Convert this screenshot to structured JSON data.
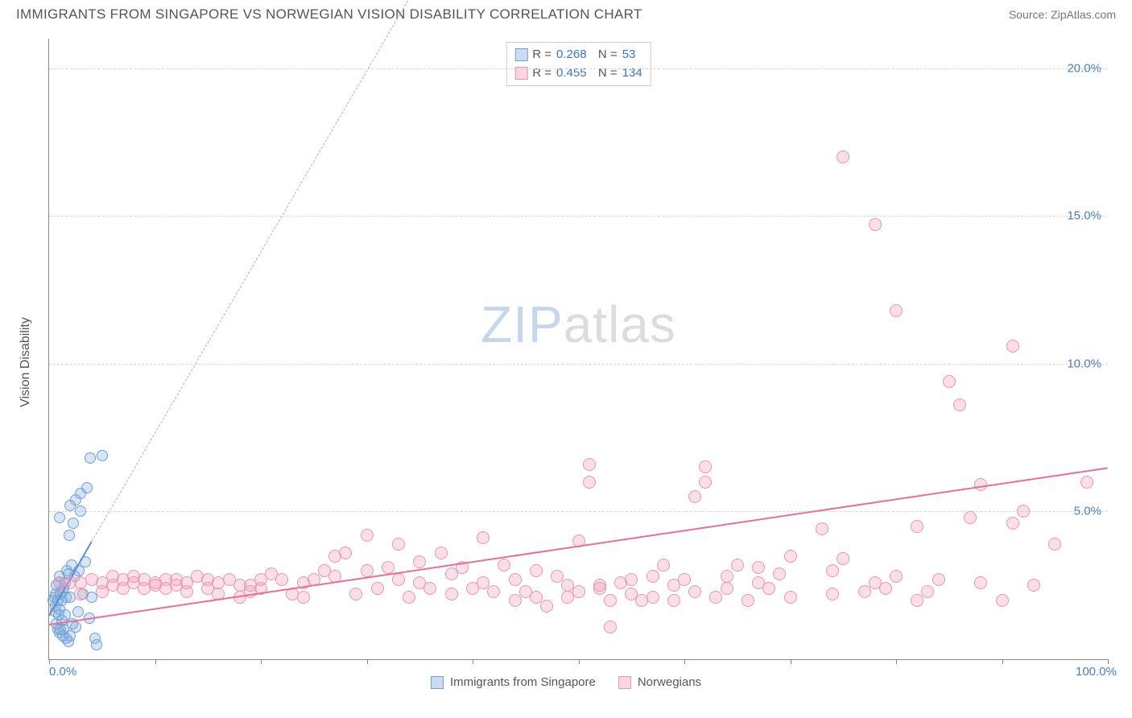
{
  "title": "IMMIGRANTS FROM SINGAPORE VS NORWEGIAN VISION DISABILITY CORRELATION CHART",
  "source": "Source: ZipAtlas.com",
  "y_axis_title": "Vision Disability",
  "watermark": {
    "part1": "ZIP",
    "part2": "atlas"
  },
  "chart": {
    "type": "scatter",
    "background_color": "#ffffff",
    "grid_color": "#d8d8d8",
    "axis_color": "#888888",
    "xlim": [
      0,
      100
    ],
    "ylim": [
      0,
      21
    ],
    "x_ticks": [
      0,
      10,
      20,
      30,
      40,
      50,
      60,
      70,
      80,
      90,
      100
    ],
    "x_tick_labels": {
      "0": "0.0%",
      "100": "100.0%"
    },
    "y_ticks": [
      5,
      10,
      15,
      20
    ],
    "y_tick_labels": [
      "5.0%",
      "10.0%",
      "15.0%",
      "20.0%"
    ],
    "label_fontsize": 15,
    "label_color": "#4a7ebb",
    "marker_radius_blue": 7,
    "marker_radius_pink": 8,
    "series": [
      {
        "name": "Immigrants from Singapore",
        "color_fill": "rgba(137,178,224,0.35)",
        "color_stroke": "#6fa0d8",
        "trend_solid_color": "#5b8fd0",
        "trend_dash_color": "#9ab8dd",
        "R": "0.268",
        "N": "53",
        "trend": {
          "x1": 0,
          "y1": 1.5,
          "x2": 4,
          "y2": 4.0,
          "extend_to_x": 35,
          "extend_to_y": 23
        },
        "points": [
          [
            0.4,
            2.0
          ],
          [
            0.5,
            2.1
          ],
          [
            0.6,
            1.6
          ],
          [
            0.6,
            2.2
          ],
          [
            0.7,
            2.5
          ],
          [
            0.8,
            1.0
          ],
          [
            0.9,
            2.6
          ],
          [
            1.0,
            0.9
          ],
          [
            1.0,
            2.8
          ],
          [
            1.1,
            2.2
          ],
          [
            1.2,
            1.3
          ],
          [
            1.2,
            2.0
          ],
          [
            1.3,
            2.3
          ],
          [
            1.4,
            1.0
          ],
          [
            1.5,
            2.6
          ],
          [
            1.6,
            0.7
          ],
          [
            1.7,
            3.0
          ],
          [
            1.8,
            0.6
          ],
          [
            1.9,
            4.2
          ],
          [
            2.0,
            0.8
          ],
          [
            2.1,
            3.2
          ],
          [
            2.3,
            4.6
          ],
          [
            2.5,
            1.1
          ],
          [
            2.5,
            5.4
          ],
          [
            2.8,
            3.0
          ],
          [
            3.0,
            5.0
          ],
          [
            3.0,
            5.6
          ],
          [
            3.6,
            5.8
          ],
          [
            3.9,
            6.8
          ],
          [
            4.0,
            2.1
          ],
          [
            4.3,
            0.7
          ],
          [
            4.5,
            0.5
          ],
          [
            5.0,
            6.9
          ],
          [
            0.6,
            1.8
          ],
          [
            0.7,
            1.2
          ],
          [
            0.8,
            2.0
          ],
          [
            0.9,
            1.5
          ],
          [
            1.0,
            1.7
          ],
          [
            1.1,
            1.0
          ],
          [
            1.3,
            0.8
          ],
          [
            1.4,
            2.4
          ],
          [
            1.5,
            1.5
          ],
          [
            1.6,
            2.1
          ],
          [
            1.8,
            2.9
          ],
          [
            2.0,
            2.1
          ],
          [
            2.2,
            1.2
          ],
          [
            2.4,
            2.8
          ],
          [
            2.7,
            1.6
          ],
          [
            3.2,
            2.2
          ],
          [
            3.4,
            3.3
          ],
          [
            3.8,
            1.4
          ],
          [
            1.0,
            4.8
          ],
          [
            2.0,
            5.2
          ]
        ]
      },
      {
        "name": "Norwegians",
        "color_fill": "rgba(244,164,186,0.35)",
        "color_stroke": "#ec93ae",
        "trend_solid_color": "#e86f95",
        "trend_dash_color": "#f3aec2",
        "R": "0.455",
        "N": "134",
        "trend": {
          "x1": 0,
          "y1": 1.2,
          "x2": 100,
          "y2": 6.5
        },
        "points": [
          [
            1,
            2.6
          ],
          [
            2,
            2.6
          ],
          [
            3,
            2.6
          ],
          [
            4,
            2.7
          ],
          [
            5,
            2.6
          ],
          [
            6,
            2.5
          ],
          [
            6,
            2.8
          ],
          [
            7,
            2.7
          ],
          [
            8,
            2.6
          ],
          [
            8,
            2.8
          ],
          [
            9,
            2.7
          ],
          [
            10,
            2.6
          ],
          [
            10,
            2.5
          ],
          [
            11,
            2.7
          ],
          [
            12,
            2.7
          ],
          [
            12,
            2.5
          ],
          [
            13,
            2.6
          ],
          [
            14,
            2.8
          ],
          [
            15,
            2.4
          ],
          [
            15,
            2.7
          ],
          [
            16,
            2.6
          ],
          [
            17,
            2.7
          ],
          [
            18,
            2.1
          ],
          [
            18,
            2.5
          ],
          [
            19,
            2.3
          ],
          [
            20,
            2.4
          ],
          [
            20,
            2.7
          ],
          [
            21,
            2.9
          ],
          [
            22,
            2.7
          ],
          [
            23,
            2.2
          ],
          [
            24,
            2.1
          ],
          [
            24,
            2.6
          ],
          [
            25,
            2.7
          ],
          [
            26,
            3.0
          ],
          [
            27,
            2.8
          ],
          [
            27,
            3.5
          ],
          [
            28,
            3.6
          ],
          [
            29,
            2.2
          ],
          [
            30,
            3.0
          ],
          [
            30,
            4.2
          ],
          [
            31,
            2.4
          ],
          [
            32,
            3.1
          ],
          [
            33,
            2.7
          ],
          [
            33,
            3.9
          ],
          [
            34,
            2.1
          ],
          [
            35,
            2.6
          ],
          [
            35,
            3.3
          ],
          [
            36,
            2.4
          ],
          [
            37,
            3.6
          ],
          [
            38,
            2.2
          ],
          [
            38,
            2.9
          ],
          [
            39,
            3.1
          ],
          [
            40,
            2.4
          ],
          [
            41,
            2.6
          ],
          [
            41,
            4.1
          ],
          [
            42,
            2.3
          ],
          [
            43,
            3.2
          ],
          [
            44,
            2.0
          ],
          [
            44,
            2.7
          ],
          [
            45,
            2.3
          ],
          [
            46,
            2.1
          ],
          [
            46,
            3.0
          ],
          [
            47,
            1.8
          ],
          [
            48,
            2.8
          ],
          [
            49,
            2.1
          ],
          [
            49,
            2.5
          ],
          [
            50,
            2.3
          ],
          [
            50,
            4.0
          ],
          [
            51,
            6.6
          ],
          [
            51,
            6.0
          ],
          [
            52,
            2.4
          ],
          [
            52,
            2.5
          ],
          [
            53,
            2.0
          ],
          [
            53,
            1.1
          ],
          [
            54,
            2.6
          ],
          [
            55,
            2.2
          ],
          [
            55,
            2.7
          ],
          [
            56,
            2.0
          ],
          [
            57,
            2.1
          ],
          [
            57,
            2.8
          ],
          [
            58,
            3.2
          ],
          [
            59,
            2.0
          ],
          [
            59,
            2.5
          ],
          [
            60,
            2.7
          ],
          [
            61,
            5.5
          ],
          [
            61,
            2.3
          ],
          [
            62,
            6.0
          ],
          [
            62,
            6.5
          ],
          [
            63,
            2.1
          ],
          [
            64,
            2.8
          ],
          [
            64,
            2.4
          ],
          [
            65,
            3.2
          ],
          [
            66,
            2.0
          ],
          [
            67,
            2.6
          ],
          [
            67,
            3.1
          ],
          [
            68,
            2.4
          ],
          [
            69,
            2.9
          ],
          [
            70,
            2.1
          ],
          [
            70,
            3.5
          ],
          [
            73,
            4.4
          ],
          [
            74,
            2.2
          ],
          [
            74,
            3.0
          ],
          [
            75,
            3.4
          ],
          [
            75,
            17.0
          ],
          [
            77,
            2.3
          ],
          [
            78,
            2.6
          ],
          [
            78,
            14.7
          ],
          [
            79,
            2.4
          ],
          [
            80,
            11.8
          ],
          [
            80,
            2.8
          ],
          [
            82,
            4.5
          ],
          [
            82,
            2.0
          ],
          [
            83,
            2.3
          ],
          [
            84,
            2.7
          ],
          [
            85,
            9.4
          ],
          [
            86,
            8.6
          ],
          [
            87,
            4.8
          ],
          [
            88,
            5.9
          ],
          [
            88,
            2.6
          ],
          [
            90,
            2.0
          ],
          [
            91,
            4.6
          ],
          [
            91,
            10.6
          ],
          [
            92,
            5.0
          ],
          [
            93,
            2.5
          ],
          [
            95,
            3.9
          ],
          [
            98,
            6.0
          ],
          [
            3,
            2.2
          ],
          [
            5,
            2.3
          ],
          [
            7,
            2.4
          ],
          [
            9,
            2.4
          ],
          [
            11,
            2.4
          ],
          [
            13,
            2.3
          ],
          [
            16,
            2.2
          ],
          [
            19,
            2.5
          ]
        ]
      }
    ]
  },
  "bottom_legend": [
    {
      "swatch": "blue",
      "label": "Immigrants from Singapore"
    },
    {
      "swatch": "pink",
      "label": "Norwegians"
    }
  ]
}
